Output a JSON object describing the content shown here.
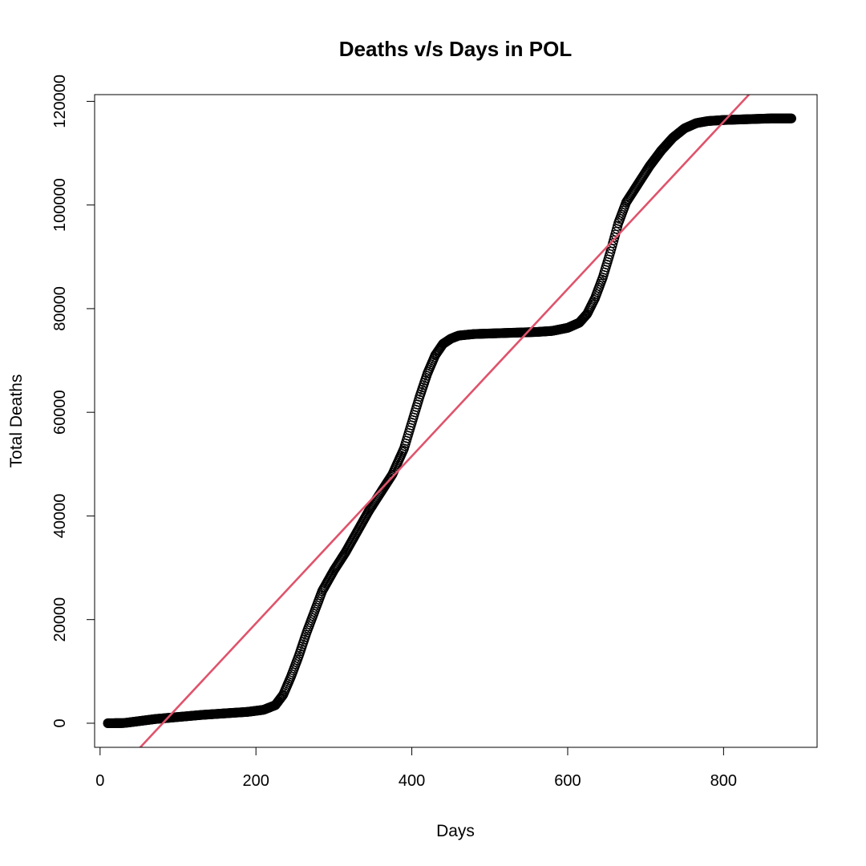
{
  "chart_data": {
    "type": "scatter",
    "title": "Deaths v/s Days in POL",
    "xlabel": "Days",
    "ylabel": "Total Deaths",
    "xlim": [
      -7,
      920
    ],
    "ylim": [
      -4650,
      121300
    ],
    "x_ticks": [
      0,
      200,
      400,
      600,
      800
    ],
    "y_ticks": [
      0,
      20000,
      40000,
      60000,
      80000,
      100000,
      120000
    ],
    "series": [
      {
        "name": "Total Deaths",
        "marker": "open-circle",
        "color": "#000000",
        "x": [
          10,
          30,
          50,
          70,
          100,
          130,
          160,
          190,
          210,
          225,
          235,
          245,
          255,
          265,
          275,
          285,
          300,
          315,
          330,
          345,
          360,
          375,
          390,
          400,
          410,
          420,
          430,
          440,
          450,
          460,
          480,
          500,
          520,
          540,
          560,
          580,
          600,
          615,
          625,
          635,
          645,
          655,
          665,
          675,
          690,
          705,
          720,
          735,
          750,
          765,
          780,
          800,
          820,
          840,
          860,
          887
        ],
        "y": [
          0,
          30,
          400,
          800,
          1200,
          1600,
          1900,
          2200,
          2600,
          3500,
          5500,
          9000,
          13000,
          17500,
          21500,
          25500,
          29500,
          33000,
          37000,
          41000,
          44500,
          48000,
          53000,
          58000,
          63000,
          67500,
          71000,
          73200,
          74200,
          74800,
          75100,
          75200,
          75300,
          75400,
          75500,
          75700,
          76300,
          77300,
          79000,
          82000,
          86000,
          91000,
          96500,
          100500,
          104000,
          107500,
          110500,
          113000,
          114800,
          115800,
          116200,
          116400,
          116500,
          116600,
          116700,
          116700
        ]
      },
      {
        "name": "Linear fit",
        "type": "line",
        "color": "#DF536B",
        "x": [
          -7,
          920
        ],
        "y": [
          -14100,
          135400
        ]
      }
    ]
  }
}
